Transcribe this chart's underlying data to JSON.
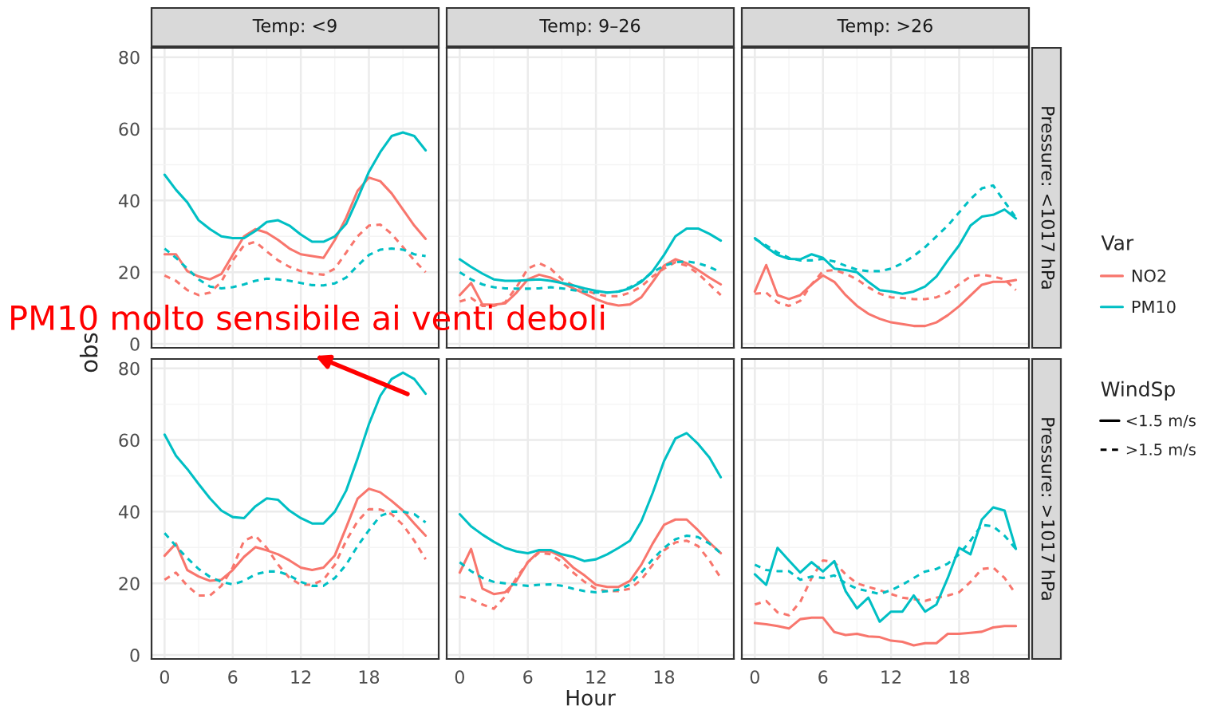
{
  "chart_data": [
    {
      "type": "line",
      "title": "Temp: <9",
      "ylabel": "obs",
      "x": [
        0,
        1,
        2,
        3,
        4,
        5,
        6,
        7,
        8,
        9,
        10,
        11,
        12,
        13,
        14,
        15,
        16,
        17,
        18,
        19,
        20,
        21,
        22,
        23
      ],
      "xlim": [
        -1.15,
        24.15
      ],
      "xticks": [
        0,
        6,
        12,
        18
      ],
      "ylim": [
        -1.1,
        82.6
      ],
      "yticks": [
        0,
        20,
        40,
        60,
        80
      ],
      "grid": true,
      "tick_labels": "y",
      "legend": "right",
      "legend_title": "Var",
      "annotations": [
        "WindSp",
        "<1.5 m/s",
        ">1.5 m/s"
      ],
      "series": [
        {
          "name": "NO2",
          "color": "#f8766d",
          "line_style": "solid",
          "values": [
            25,
            25,
            20.3,
            18.8,
            18,
            19.5,
            24.8,
            30,
            32,
            31,
            29,
            26.6,
            25,
            24.5,
            24,
            29,
            35.2,
            42.7,
            46.4,
            45.4,
            42,
            37.5,
            33,
            29.3
          ]
        },
        {
          "color": "#f8766d",
          "line_style": "dashed",
          "values": [
            19.1,
            17.6,
            15,
            13.6,
            14.3,
            17.3,
            23.3,
            27.5,
            28.5,
            25.8,
            23.3,
            21.5,
            20.3,
            19.6,
            19.3,
            21,
            25.5,
            30,
            33,
            33.3,
            30.7,
            27,
            23.3,
            20
          ]
        },
        {
          "name": "PM10",
          "color": "#00bfc4",
          "line_style": "solid",
          "values": [
            47.2,
            43,
            39.5,
            34.5,
            32,
            30,
            29.5,
            29.5,
            31.5,
            34,
            34.5,
            33,
            30.5,
            28.5,
            28.5,
            30,
            33.5,
            40.5,
            48,
            53.5,
            58,
            59,
            58,
            54
          ]
        },
        {
          "color": "#00bfc4",
          "line_style": "dashed",
          "values": [
            26.6,
            24,
            21,
            18,
            16,
            15.5,
            15.8,
            16.6,
            17.6,
            18.2,
            18,
            17.6,
            17,
            16.4,
            16.3,
            16.9,
            18.5,
            21.8,
            24.8,
            26.3,
            26.6,
            26.3,
            25,
            24.5
          ]
        }
      ]
    },
    {
      "type": "line",
      "title": "Temp: 9–26",
      "x": [
        0,
        1,
        2,
        3,
        4,
        5,
        6,
        7,
        8,
        9,
        10,
        11,
        12,
        13,
        14,
        15,
        16,
        17,
        18,
        19,
        20,
        21,
        22,
        23
      ],
      "xlim": [
        -1.15,
        24.15
      ],
      "xticks": [
        0,
        6,
        12,
        18
      ],
      "ylim": [
        -1.1,
        82.6
      ],
      "yticks": [
        0,
        20,
        40,
        60,
        80
      ],
      "grid": true,
      "tick_labels": false,
      "series": [
        {
          "color": "#f8766d",
          "line_style": "solid",
          "values": [
            13.6,
            17,
            11,
            10.9,
            11.3,
            14.3,
            18,
            19.3,
            18.5,
            17,
            15.5,
            14,
            12.5,
            11.3,
            10.7,
            11,
            13,
            17.3,
            21.8,
            23.6,
            22.5,
            20.6,
            18.5,
            16.6
          ]
        },
        {
          "color": "#f8766d",
          "line_style": "dashed",
          "values": [
            11.8,
            12.8,
            10.6,
            10.6,
            11.6,
            15.8,
            21,
            22.5,
            21,
            18,
            16.3,
            15,
            13.9,
            13.3,
            13.3,
            14.3,
            16,
            18.8,
            21,
            22.8,
            21.8,
            19.6,
            16.6,
            13.6
          ]
        },
        {
          "color": "#00bfc4",
          "line_style": "solid",
          "values": [
            23.6,
            21.5,
            19.6,
            18,
            17.6,
            17.6,
            17.8,
            18,
            17.6,
            17,
            16.3,
            15.5,
            14.8,
            14.3,
            14.6,
            15.5,
            17.3,
            20.3,
            24.8,
            30,
            32.2,
            32.2,
            30.7,
            28.8
          ]
        },
        {
          "color": "#00bfc4",
          "line_style": "dashed",
          "values": [
            20,
            18,
            16.6,
            15.8,
            15.5,
            15.4,
            15.4,
            15.5,
            15.8,
            15.5,
            15,
            14.6,
            14.3,
            14.3,
            14.6,
            15.8,
            17.6,
            20,
            21.8,
            22.8,
            23,
            22.5,
            21.5,
            19.9
          ]
        }
      ]
    },
    {
      "type": "line",
      "title": "Temp: >26",
      "x": [
        0,
        1,
        2,
        3,
        4,
        5,
        6,
        7,
        8,
        9,
        10,
        11,
        12,
        13,
        14,
        15,
        16,
        17,
        18,
        19,
        20,
        21,
        22,
        23
      ],
      "xlim": [
        -1.15,
        24.15
      ],
      "xticks": [
        0,
        6,
        12,
        18
      ],
      "ylim": [
        -1.1,
        82.6
      ],
      "yticks": [
        0,
        20,
        40,
        60,
        80
      ],
      "grid": true,
      "tick_labels": false,
      "annotations": [
        "Pressure: <1017 hPa"
      ],
      "series": [
        {
          "color": "#f8766d",
          "line_style": "solid",
          "values": [
            14.6,
            22,
            13.6,
            12.5,
            13.6,
            16.6,
            19.1,
            17.3,
            13.6,
            10.6,
            8.4,
            7,
            6,
            5.5,
            5,
            5,
            6,
            8,
            10.5,
            13.5,
            16.5,
            17.3,
            17.3,
            17.8
          ]
        },
        {
          "color": "#f8766d",
          "line_style": "dashed",
          "values": [
            14,
            14.3,
            11.6,
            10.6,
            12,
            16.6,
            20.3,
            20.6,
            19.6,
            18,
            15.8,
            14,
            13,
            12.8,
            12.5,
            12.5,
            13,
            14.3,
            16.6,
            18.8,
            19.3,
            18.8,
            18,
            15
          ]
        },
        {
          "color": "#00bfc4",
          "line_style": "solid",
          "values": [
            29.5,
            27,
            24.8,
            23.7,
            23.6,
            25,
            24,
            21,
            20.6,
            20,
            17.3,
            15,
            14.6,
            14,
            14.6,
            16,
            18.8,
            23.3,
            27.5,
            33,
            35.5,
            36,
            37.5,
            35
          ]
        },
        {
          "color": "#00bfc4",
          "line_style": "dashed",
          "values": [
            29.3,
            27.5,
            25.5,
            24,
            23.3,
            23.3,
            23.7,
            23,
            21.8,
            20.7,
            20.3,
            20.3,
            21,
            22.5,
            24.5,
            27,
            30,
            33,
            36.7,
            40.4,
            43.4,
            44.2,
            39.7,
            35.2
          ]
        }
      ]
    },
    {
      "type": "line",
      "x": [
        0,
        1,
        2,
        3,
        4,
        5,
        6,
        7,
        8,
        9,
        10,
        11,
        12,
        13,
        14,
        15,
        16,
        17,
        18,
        19,
        20,
        21,
        22,
        23
      ],
      "xlim": [
        -1.15,
        24.15
      ],
      "xticks": [
        0,
        6,
        12,
        18
      ],
      "ylim": [
        -1.1,
        82.6
      ],
      "yticks": [
        0,
        20,
        40,
        60,
        80
      ],
      "grid": true,
      "annotations": [
        "PM10 molto sensibile ai venti deboli"
      ],
      "series": [
        {
          "color": "#f8766d",
          "line_style": "solid",
          "values": [
            27.7,
            31.1,
            23.7,
            21.9,
            20.7,
            21,
            23.7,
            27.4,
            30.1,
            29.2,
            28.1,
            26.4,
            24.4,
            23.7,
            24.4,
            27.8,
            35.6,
            43.6,
            46.4,
            45.4,
            43,
            40.3,
            36.7,
            33.3
          ]
        },
        {
          "color": "#f8766d",
          "line_style": "dashed",
          "values": [
            21,
            23,
            19.3,
            16.6,
            16.6,
            19.3,
            24.4,
            31.9,
            33.3,
            29.9,
            25.2,
            21.5,
            19.6,
            19.6,
            21,
            25.2,
            31.9,
            37.3,
            40.7,
            40.6,
            39.3,
            36.3,
            31.9,
            26.7
          ]
        },
        {
          "color": "#00bfc4",
          "line_style": "solid",
          "values": [
            61.5,
            55.6,
            51.9,
            47.7,
            43.7,
            40.3,
            38.5,
            38.2,
            41.5,
            43.7,
            43.3,
            40.3,
            38.2,
            36.7,
            36.7,
            40,
            45.9,
            54.8,
            64.4,
            72.3,
            77,
            78.8,
            77,
            72.9
          ]
        },
        {
          "color": "#00bfc4",
          "line_style": "dashed",
          "values": [
            34,
            30.4,
            27,
            24,
            21.8,
            20.4,
            19.7,
            20.7,
            22.5,
            23.3,
            23.3,
            22.2,
            20.4,
            19.3,
            19.3,
            21.5,
            25.2,
            30.4,
            34.8,
            38.8,
            40,
            40,
            39.3,
            37
          ]
        }
      ]
    },
    {
      "type": "line",
      "xlabel": "Hour",
      "x": [
        0,
        1,
        2,
        3,
        4,
        5,
        6,
        7,
        8,
        9,
        10,
        11,
        12,
        13,
        14,
        15,
        16,
        17,
        18,
        19,
        20,
        21,
        22,
        23
      ],
      "xlim": [
        -1.15,
        24.15
      ],
      "xticks": [
        0,
        6,
        12,
        18
      ],
      "ylim": [
        -1.1,
        82.6
      ],
      "yticks": [
        0,
        20,
        40,
        60,
        80
      ],
      "grid": true,
      "tick_labels": "x",
      "series": [
        {
          "color": "#f8766d",
          "line_style": "solid",
          "values": [
            23,
            29.6,
            18.5,
            17,
            17.5,
            20.7,
            25.9,
            28.9,
            28.9,
            27.4,
            24.4,
            22.2,
            19.6,
            19,
            19,
            20.7,
            25.2,
            31.1,
            36.3,
            37.8,
            37.8,
            34.8,
            31.4,
            28.4
          ]
        },
        {
          "color": "#f8766d",
          "line_style": "dashed",
          "values": [
            16.3,
            15.6,
            14.1,
            12.9,
            16.3,
            21.5,
            25.9,
            28.6,
            28.1,
            25.9,
            23,
            20.4,
            18.5,
            17.8,
            17.8,
            18.5,
            21,
            25.2,
            29.2,
            31.4,
            31.9,
            30.4,
            26.4,
            21.5
          ]
        },
        {
          "color": "#00bfc4",
          "line_style": "solid",
          "values": [
            39.3,
            35.9,
            33.6,
            31.6,
            29.9,
            28.9,
            28.4,
            29.3,
            29.3,
            28.1,
            27.4,
            26.2,
            26.7,
            28.1,
            29.9,
            31.9,
            37.3,
            45.2,
            54.1,
            60.4,
            61.9,
            58.9,
            55.1,
            49.6
          ]
        },
        {
          "color": "#00bfc4",
          "line_style": "dashed",
          "values": [
            25.9,
            23.4,
            21.5,
            20.4,
            20,
            19.6,
            19.3,
            19.6,
            19.7,
            19.3,
            18.5,
            17.8,
            17.5,
            17.8,
            18.2,
            19.7,
            23,
            26.7,
            29.9,
            32.3,
            33.3,
            32.9,
            31.1,
            28.4
          ]
        }
      ]
    },
    {
      "type": "line",
      "x": [
        0,
        1,
        2,
        3,
        4,
        5,
        6,
        7,
        8,
        9,
        10,
        11,
        12,
        13,
        14,
        15,
        16,
        17,
        18,
        19,
        20,
        21,
        22,
        23
      ],
      "xlim": [
        -1.15,
        24.15
      ],
      "xticks": [
        0,
        6,
        12,
        18
      ],
      "ylim": [
        -1.1,
        82.6
      ],
      "yticks": [
        0,
        20,
        40,
        60,
        80
      ],
      "grid": true,
      "tick_labels": "x",
      "annotations": [
        "Pressure: >1017 hPa"
      ],
      "series": [
        {
          "color": "#f8766d",
          "line_style": "solid",
          "values": [
            8.9,
            8.6,
            8.1,
            7.4,
            10,
            10.4,
            10.4,
            6.4,
            5.6,
            5.9,
            5.2,
            5,
            4,
            3.7,
            2.7,
            3.3,
            3.3,
            5.9,
            5.9,
            6.2,
            6.5,
            7.7,
            8.1,
            8.1
          ]
        },
        {
          "color": "#f8766d",
          "line_style": "dashed",
          "values": [
            14.1,
            15.1,
            11.9,
            11.1,
            14.8,
            21.5,
            26.4,
            25.9,
            22.5,
            20,
            19,
            18.1,
            17,
            16,
            15.6,
            15.1,
            16,
            16.6,
            17.5,
            20.4,
            24,
            24.4,
            21.5,
            17
          ]
        },
        {
          "color": "#00bfc4",
          "line_style": "solid",
          "values": [
            22.5,
            19.6,
            29.9,
            26.4,
            23,
            25.9,
            23.3,
            26.2,
            17.8,
            13,
            16,
            9.3,
            12.1,
            12.1,
            16.6,
            12.1,
            14.1,
            21.5,
            29.9,
            28.1,
            37.8,
            41.2,
            40.3,
            29.6
          ]
        },
        {
          "color": "#00bfc4",
          "line_style": "dashed",
          "values": [
            25.2,
            23.7,
            23.4,
            23.4,
            21,
            21.9,
            21.5,
            22.2,
            20,
            18.5,
            17.8,
            17,
            18.1,
            19.6,
            21.5,
            23.3,
            24,
            25.5,
            28.1,
            31.9,
            36.3,
            35.9,
            33.3,
            29.6
          ]
        }
      ]
    }
  ]
}
